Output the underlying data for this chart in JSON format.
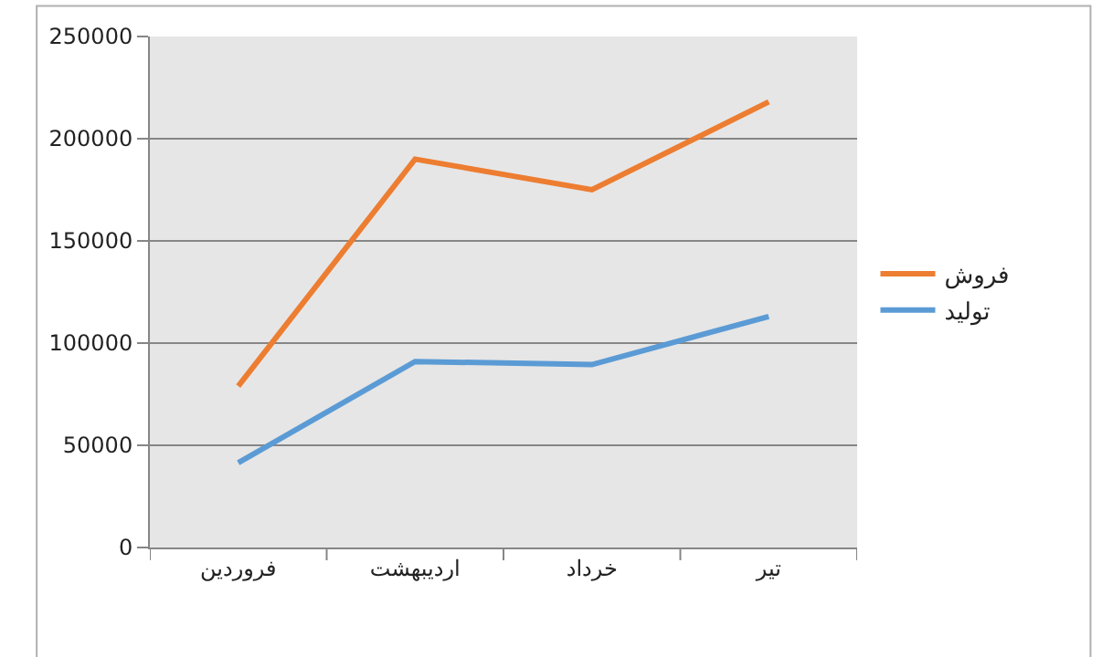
{
  "chart_data": {
    "type": "line",
    "categories": [
      "فروردین",
      "اردیبهشت",
      "خرداد",
      "تیر"
    ],
    "series": [
      {
        "name": "فروش",
        "color": "#ed7d31",
        "values": [
          79000,
          190000,
          175000,
          218000
        ]
      },
      {
        "name": "تولید",
        "color": "#5b9bd5",
        "values": [
          41500,
          91000,
          89500,
          113000
        ]
      }
    ],
    "ylim": [
      0,
      250000
    ],
    "yticks": [
      0,
      50000,
      100000,
      150000,
      200000,
      250000
    ],
    "grid": "y",
    "legend": "right",
    "marker": "none",
    "line_style": "solid"
  }
}
